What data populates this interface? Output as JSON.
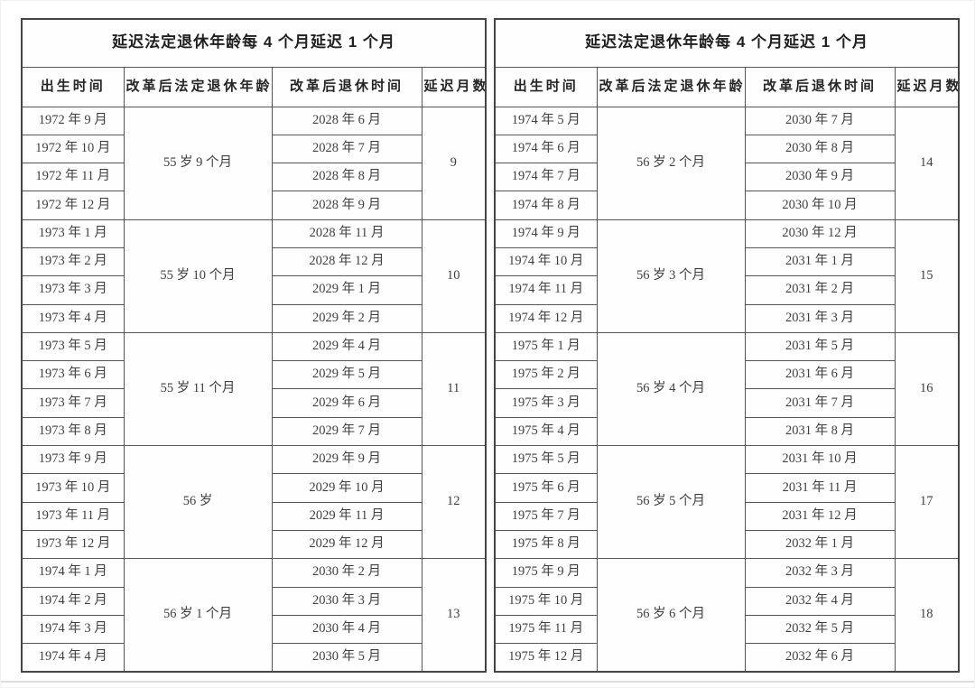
{
  "colors": {
    "background": "#ffffff",
    "table_border": "#4e4e4e",
    "body_text": "#3f3f3f",
    "header_text": "#1f1f1f",
    "bottom_divider": "#dcdcdc"
  },
  "tables": [
    {
      "title": "延迟法定退休年龄每 4 个月延迟 1 个月",
      "headers": [
        "出生时间",
        "改革后法定退休年龄",
        "改革后退休时间",
        "延迟月数"
      ],
      "groups": [
        {
          "age": "55 岁 9 个月",
          "delay": "9",
          "rows": [
            [
              "1972 年 9 月",
              "2028 年 6 月"
            ],
            [
              "1972 年 10 月",
              "2028 年 7 月"
            ],
            [
              "1972 年 11 月",
              "2028 年 8 月"
            ],
            [
              "1972 年 12 月",
              "2028 年 9 月"
            ]
          ]
        },
        {
          "age": "55 岁 10 个月",
          "delay": "10",
          "rows": [
            [
              "1973 年 1 月",
              "2028 年 11 月"
            ],
            [
              "1973 年 2 月",
              "2028 年 12 月"
            ],
            [
              "1973 年 3 月",
              "2029 年 1 月"
            ],
            [
              "1973 年 4 月",
              "2029 年 2 月"
            ]
          ]
        },
        {
          "age": "55 岁 11 个月",
          "delay": "11",
          "rows": [
            [
              "1973 年 5 月",
              "2029 年 4 月"
            ],
            [
              "1973 年 6 月",
              "2029 年 5 月"
            ],
            [
              "1973 年 7 月",
              "2029 年 6 月"
            ],
            [
              "1973 年 8 月",
              "2029 年 7 月"
            ]
          ]
        },
        {
          "age": "56 岁",
          "delay": "12",
          "rows": [
            [
              "1973 年 9 月",
              "2029 年 9 月"
            ],
            [
              "1973 年 10 月",
              "2029 年 10 月"
            ],
            [
              "1973 年 11 月",
              "2029 年 11 月"
            ],
            [
              "1973 年 12 月",
              "2029 年 12 月"
            ]
          ]
        },
        {
          "age": "56 岁 1 个月",
          "delay": "13",
          "rows": [
            [
              "1974 年 1 月",
              "2030 年 2 月"
            ],
            [
              "1974 年 2 月",
              "2030 年 3 月"
            ],
            [
              "1974 年 3 月",
              "2030 年 4 月"
            ],
            [
              "1974 年 4 月",
              "2030 年 5 月"
            ]
          ]
        }
      ]
    },
    {
      "title": "延迟法定退休年龄每 4 个月延迟 1 个月",
      "headers": [
        "出生时间",
        "改革后法定退休年龄",
        "改革后退休时间",
        "延迟月数"
      ],
      "groups": [
        {
          "age": "56 岁 2 个月",
          "delay": "14",
          "rows": [
            [
              "1974 年 5 月",
              "2030 年 7 月"
            ],
            [
              "1974 年 6 月",
              "2030 年 8 月"
            ],
            [
              "1974 年 7 月",
              "2030 年 9 月"
            ],
            [
              "1974 年 8 月",
              "2030 年 10 月"
            ]
          ]
        },
        {
          "age": "56 岁 3 个月",
          "delay": "15",
          "rows": [
            [
              "1974 年 9 月",
              "2030 年 12 月"
            ],
            [
              "1974 年 10 月",
              "2031 年 1 月"
            ],
            [
              "1974 年 11 月",
              "2031 年 2 月"
            ],
            [
              "1974 年 12 月",
              "2031 年 3 月"
            ]
          ]
        },
        {
          "age": "56 岁 4 个月",
          "delay": "16",
          "rows": [
            [
              "1975 年 1 月",
              "2031 年 5 月"
            ],
            [
              "1975 年 2 月",
              "2031 年 6 月"
            ],
            [
              "1975 年 3 月",
              "2031 年 7 月"
            ],
            [
              "1975 年 4 月",
              "2031 年 8 月"
            ]
          ]
        },
        {
          "age": "56 岁 5 个月",
          "delay": "17",
          "rows": [
            [
              "1975 年 5 月",
              "2031 年 10 月"
            ],
            [
              "1975 年 6 月",
              "2031 年 11 月"
            ],
            [
              "1975 年 7 月",
              "2031 年 12 月"
            ],
            [
              "1975 年 8 月",
              "2032 年 1 月"
            ]
          ]
        },
        {
          "age": "56 岁 6 个月",
          "delay": "18",
          "rows": [
            [
              "1975 年 9 月",
              "2032 年 3 月"
            ],
            [
              "1975 年 10 月",
              "2032 年 4 月"
            ],
            [
              "1975 年 11 月",
              "2032 年 5 月"
            ],
            [
              "1975 年 12 月",
              "2032 年 6 月"
            ]
          ]
        }
      ]
    }
  ]
}
